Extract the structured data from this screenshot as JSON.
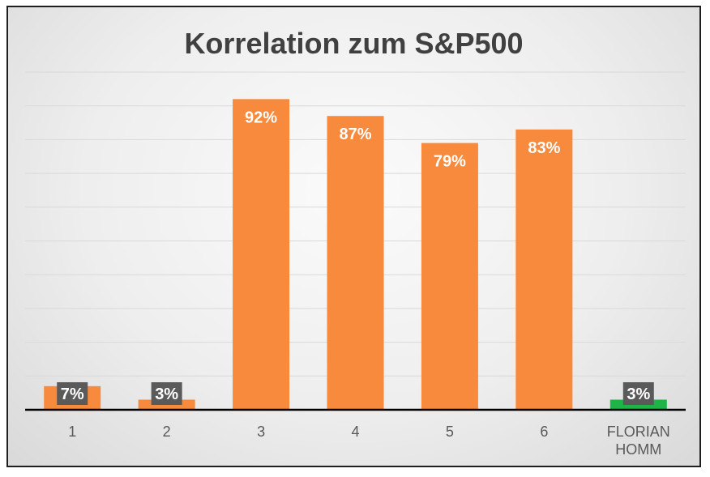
{
  "chart_data": {
    "type": "bar",
    "title": "Korrelation zum S&P500",
    "xlabel": "",
    "ylabel": "",
    "ylim": [
      0,
      100
    ],
    "grid": true,
    "legend": "none",
    "categories": [
      "1",
      "2",
      "3",
      "4",
      "5",
      "6",
      "FLORIAN HOMM"
    ],
    "category_lines": [
      [
        "1"
      ],
      [
        "2"
      ],
      [
        "3"
      ],
      [
        "4"
      ],
      [
        "5"
      ],
      [
        "6"
      ],
      [
        "FLORIAN",
        "HOMM"
      ]
    ],
    "values": [
      7,
      3,
      92,
      87,
      79,
      83,
      3
    ],
    "data_labels": [
      "7%",
      "3%",
      "92%",
      "87%",
      "79%",
      "83%",
      "3%"
    ],
    "bar_colors": [
      "#F78A3C",
      "#F78A3C",
      "#F78A3C",
      "#F78A3C",
      "#F78A3C",
      "#F78A3C",
      "#1DB548"
    ],
    "label_box_color": "#5A5A5A",
    "gridline_color": "#D9D9D9",
    "axis_color": "#000000"
  }
}
